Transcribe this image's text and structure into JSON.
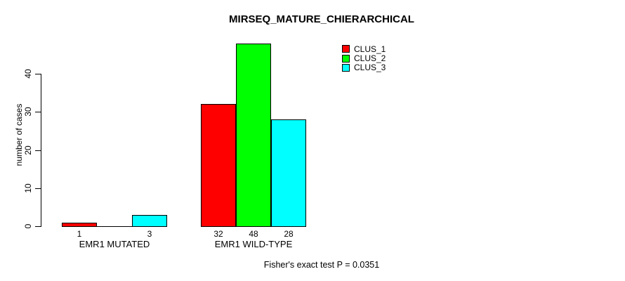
{
  "chart_data": {
    "type": "bar",
    "title": "MIRSEQ_MATURE_CHIERARCHICAL",
    "ylabel": "number of cases",
    "xlabel": "",
    "ylim": [
      0,
      40
    ],
    "yticks": [
      0,
      10,
      20,
      30,
      40
    ],
    "grid": false,
    "legend_position": "top-right",
    "series": [
      {
        "name": "CLUS_1",
        "color": "#ff0000"
      },
      {
        "name": "CLUS_2",
        "color": "#00ff00"
      },
      {
        "name": "CLUS_3",
        "color": "#00ffff"
      }
    ],
    "groups": [
      {
        "label": "EMR1 MUTATED",
        "values": [
          1,
          0,
          3
        ],
        "bar_labels": [
          "1",
          "",
          "3"
        ]
      },
      {
        "label": "EMR1 WILD-TYPE",
        "values": [
          32,
          48,
          28
        ],
        "bar_labels": [
          "32",
          "48",
          "28"
        ]
      }
    ],
    "annotation": "Fisher's exact test P = 0.0351"
  },
  "colors": {
    "background": "#ffffff",
    "axis": "#000000",
    "text": "#000000"
  }
}
